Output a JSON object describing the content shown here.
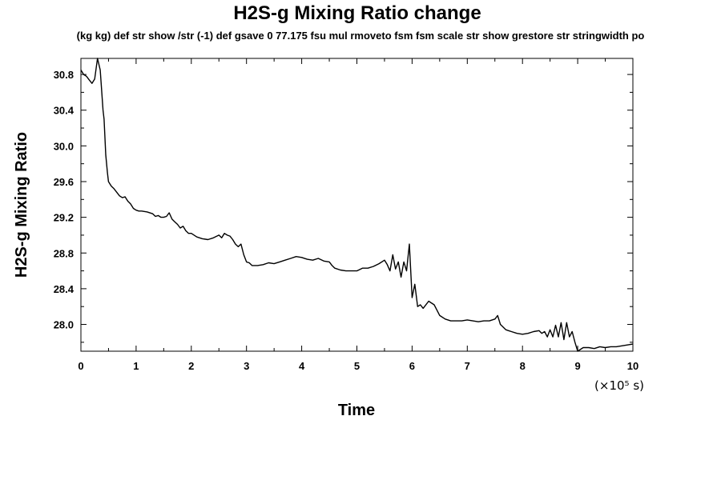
{
  "chart_data": {
    "type": "line",
    "title": "H2S-g Mixing Ratio change",
    "subtitle": "(kg kg) def str show /str (-1) def gsave 0 77.175 fsu mul rmoveto fsm fsm scale str show grestore str stringwidth po",
    "xlabel": "Time",
    "ylabel": "H2S-g Mixing Ratio",
    "x_unit_label": "(×10⁵ s)",
    "xlim": [
      0,
      10
    ],
    "ylim": [
      27.7,
      30.98
    ],
    "x_ticks": [
      "0",
      "1",
      "2",
      "3",
      "4",
      "5",
      "6",
      "7",
      "8",
      "9",
      "10"
    ],
    "y_ticks": [
      "28.0",
      "28.4",
      "28.8",
      "29.2",
      "29.6",
      "30.0",
      "30.4",
      "30.8"
    ],
    "grid": false,
    "legend": "none",
    "line_color": "#000000",
    "series": [
      {
        "x": [
          0,
          0.05,
          0.1,
          0.15,
          0.2,
          0.25,
          0.3,
          0.35,
          0.4,
          0.42,
          0.45,
          0.48,
          0.5,
          0.55,
          0.6,
          0.65,
          0.7,
          0.75,
          0.8,
          0.85,
          0.9,
          0.95,
          1.0,
          1.05,
          1.1,
          1.2,
          1.3,
          1.35,
          1.4,
          1.45,
          1.5,
          1.55,
          1.6,
          1.65,
          1.7,
          1.75,
          1.8,
          1.85,
          1.9,
          1.95,
          2.0,
          2.1,
          2.2,
          2.3,
          2.4,
          2.5,
          2.55,
          2.6,
          2.65,
          2.7,
          2.75,
          2.8,
          2.85,
          2.9,
          2.95,
          3.0,
          3.05,
          3.1,
          3.2,
          3.3,
          3.4,
          3.5,
          3.6,
          3.7,
          3.8,
          3.9,
          4.0,
          4.1,
          4.2,
          4.3,
          4.4,
          4.5,
          4.55,
          4.6,
          4.7,
          4.8,
          4.9,
          5.0,
          5.1,
          5.2,
          5.3,
          5.4,
          5.5,
          5.55,
          5.6,
          5.65,
          5.7,
          5.75,
          5.8,
          5.85,
          5.9,
          5.95,
          6.0,
          6.05,
          6.1,
          6.15,
          6.2,
          6.3,
          6.4,
          6.5,
          6.6,
          6.7,
          6.8,
          6.9,
          7.0,
          7.1,
          7.2,
          7.3,
          7.4,
          7.5,
          7.55,
          7.6,
          7.7,
          7.8,
          7.9,
          8.0,
          8.1,
          8.2,
          8.3,
          8.35,
          8.4,
          8.45,
          8.5,
          8.55,
          8.6,
          8.65,
          8.7,
          8.75,
          8.8,
          8.85,
          8.9,
          8.95,
          9.0,
          9.1,
          9.2,
          9.3,
          9.4,
          9.5,
          9.6,
          9.7,
          9.8,
          9.9,
          10.0
        ],
        "y": [
          30.85,
          30.8,
          30.78,
          30.74,
          30.7,
          30.75,
          30.98,
          30.85,
          30.4,
          30.3,
          29.9,
          29.7,
          29.6,
          29.55,
          29.52,
          29.48,
          29.44,
          29.42,
          29.43,
          29.38,
          29.35,
          29.3,
          29.28,
          29.27,
          29.27,
          29.26,
          29.24,
          29.21,
          29.22,
          29.2,
          29.2,
          29.21,
          29.25,
          29.18,
          29.15,
          29.12,
          29.08,
          29.1,
          29.05,
          29.02,
          29.02,
          28.98,
          28.96,
          28.95,
          28.97,
          29.0,
          28.97,
          29.02,
          29.0,
          28.99,
          28.95,
          28.9,
          28.87,
          28.9,
          28.78,
          28.7,
          28.69,
          28.66,
          28.66,
          28.67,
          28.69,
          28.68,
          28.7,
          28.72,
          28.74,
          28.76,
          28.75,
          28.73,
          28.72,
          28.74,
          28.71,
          28.7,
          28.66,
          28.63,
          28.61,
          28.6,
          28.6,
          28.6,
          28.63,
          28.63,
          28.65,
          28.68,
          28.72,
          28.67,
          28.6,
          28.78,
          28.62,
          28.7,
          28.53,
          28.7,
          28.6,
          28.9,
          28.3,
          28.45,
          28.2,
          28.22,
          28.18,
          28.26,
          28.22,
          28.1,
          28.06,
          28.04,
          28.04,
          28.04,
          28.05,
          28.04,
          28.03,
          28.04,
          28.04,
          28.06,
          28.1,
          28.0,
          27.94,
          27.92,
          27.9,
          27.89,
          27.9,
          27.92,
          27.93,
          27.9,
          27.92,
          27.86,
          27.94,
          27.86,
          27.99,
          27.86,
          28.02,
          27.83,
          28.02,
          27.86,
          27.92,
          27.8,
          27.7,
          27.74,
          27.74,
          27.73,
          27.75,
          27.74,
          27.75,
          27.75,
          27.76,
          27.77,
          27.78
        ]
      }
    ]
  }
}
